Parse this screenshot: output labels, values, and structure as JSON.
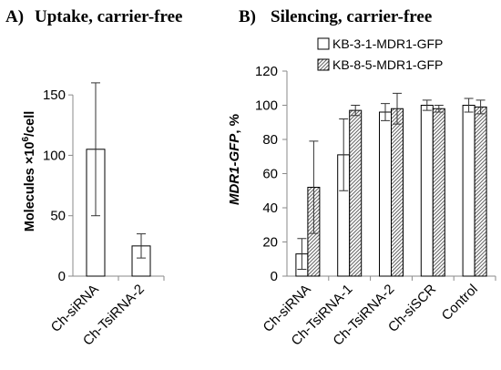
{
  "colors": {
    "bar_fill": "#ffffff",
    "bar_stroke": "#000000",
    "hatch_stroke": "#6b6b6b",
    "axis": "#8a8a8a",
    "error_bar": "#333333"
  },
  "chart_data": [
    {
      "type": "bar",
      "panel_label": "A)",
      "title": "Uptake, carrier-free",
      "ylabel": "Molecules ×10",
      "ylabel_sup": "6",
      "ylabel_suffix": "/cell",
      "xlabel": "",
      "ylim": [
        0,
        175
      ],
      "yticks": [
        0,
        50,
        100,
        150
      ],
      "yticklabels": [
        "0",
        "50",
        "100",
        "150"
      ],
      "grid": false,
      "categories": [
        "Ch-siRNA",
        "Ch-TsiRNA-2"
      ],
      "series": [
        {
          "fill": "plain",
          "values": [
            105,
            25
          ],
          "error": [
            55,
            10
          ]
        }
      ]
    },
    {
      "type": "bar",
      "panel_label": "B)",
      "title": "Silencing, carrier-free",
      "ylabel": "MDR1-GFP",
      "ylabel_suffix": ", %",
      "xlabel": "",
      "ylim": [
        0,
        120
      ],
      "yticks": [
        0,
        20,
        40,
        60,
        80,
        100,
        120
      ],
      "yticklabels": [
        "0",
        "20",
        "40",
        "60",
        "80",
        "100",
        "120"
      ],
      "grid": false,
      "legend": "top-right",
      "categories": [
        "Ch-siRNA",
        "Ch-TsiRNA-1",
        "Ch-TsiRNA-2",
        "Ch-siSCR",
        "Control"
      ],
      "series": [
        {
          "name": "KB-3-1-MDR1-GFP",
          "fill": "plain",
          "values": [
            13,
            71,
            96,
            100,
            100
          ],
          "error": [
            9,
            21,
            5,
            3,
            4
          ]
        },
        {
          "name": "KB-8-5-MDR1-GFP",
          "fill": "hatched",
          "values": [
            52,
            97,
            98,
            98,
            99
          ],
          "error": [
            27,
            3,
            9,
            2,
            4
          ]
        }
      ]
    }
  ]
}
